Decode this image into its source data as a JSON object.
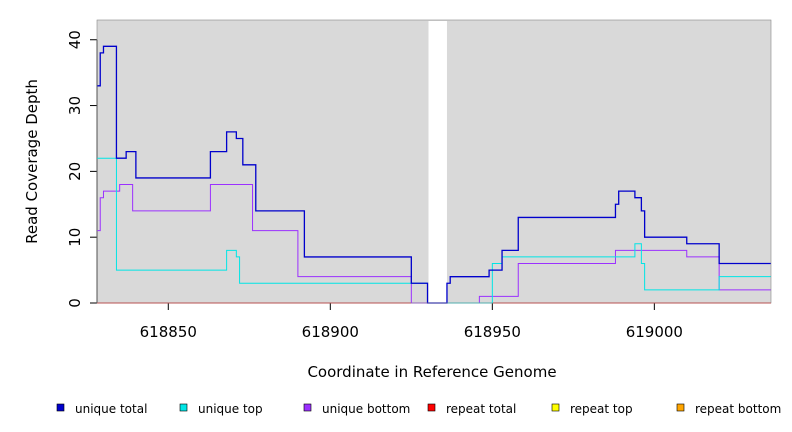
{
  "chart_data": {
    "type": "line",
    "step": true,
    "xlabel": "Coordinate in Reference Genome",
    "ylabel": "Read Coverage Depth",
    "xlim": [
      618828,
      619036
    ],
    "ylim": [
      0,
      43
    ],
    "x_ticks": [
      618850,
      618900,
      618950,
      619000
    ],
    "x_tick_labels": [
      "618850",
      "618900",
      "618950",
      "619000"
    ],
    "y_ticks": [
      0,
      10,
      20,
      30,
      40
    ],
    "y_tick_labels": [
      "0",
      "10",
      "20",
      "30",
      "40"
    ],
    "background": "#d9d9d9",
    "gap": [
      618930,
      618936
    ],
    "legend_position": "bottom",
    "series": [
      {
        "name": "unique total",
        "color": "#0000cc",
        "x": [
          618828,
          618829,
          618830,
          618831,
          618834,
          618835,
          618837,
          618840,
          618852,
          618861,
          618863,
          618867,
          618868,
          618870,
          618871,
          618873,
          618877,
          618889,
          618892,
          618925,
          618930,
          618935,
          618936,
          618937,
          618949,
          618953,
          618958,
          618988,
          618989,
          618994,
          618996,
          618997,
          619000,
          619010,
          619020,
          619036
        ],
        "y": [
          33,
          38,
          39,
          39,
          22,
          22,
          23,
          19,
          19,
          19,
          23,
          23,
          26,
          26,
          25,
          21,
          14,
          14,
          7,
          3,
          0,
          0,
          3,
          4,
          5,
          8,
          13,
          15,
          17,
          16,
          14,
          10,
          10,
          9,
          6,
          6
        ]
      },
      {
        "name": "unique top",
        "color": "#00e5e5",
        "x": [
          618828,
          618834,
          618867,
          618868,
          618871,
          618872,
          618925,
          618930,
          618936,
          618950,
          618953,
          618988,
          618994,
          618996,
          618997,
          619020,
          619036
        ],
        "y": [
          22,
          5,
          5,
          8,
          7,
          3,
          3,
          0,
          0,
          6,
          7,
          7,
          9,
          6,
          2,
          4,
          4
        ]
      },
      {
        "name": "unique bottom",
        "color": "#9b30ff",
        "x": [
          618828,
          618829,
          618830,
          618833,
          618835,
          618839,
          618863,
          618876,
          618890,
          618925,
          618930,
          618946,
          618958,
          618988,
          619010,
          619020,
          619036
        ],
        "y": [
          11,
          16,
          17,
          17,
          18,
          14,
          18,
          11,
          4,
          0,
          0,
          1,
          6,
          8,
          7,
          2,
          2
        ]
      },
      {
        "name": "repeat total",
        "color": "#ff0000",
        "x": [
          618828,
          619036
        ],
        "y": [
          0,
          0
        ]
      },
      {
        "name": "repeat top",
        "color": "#ffff00",
        "x": [
          618828,
          619036
        ],
        "y": [
          0,
          0
        ]
      },
      {
        "name": "repeat bottom",
        "color": "#ffa500",
        "x": [
          618828,
          619036
        ],
        "y": [
          0,
          0
        ]
      }
    ]
  }
}
